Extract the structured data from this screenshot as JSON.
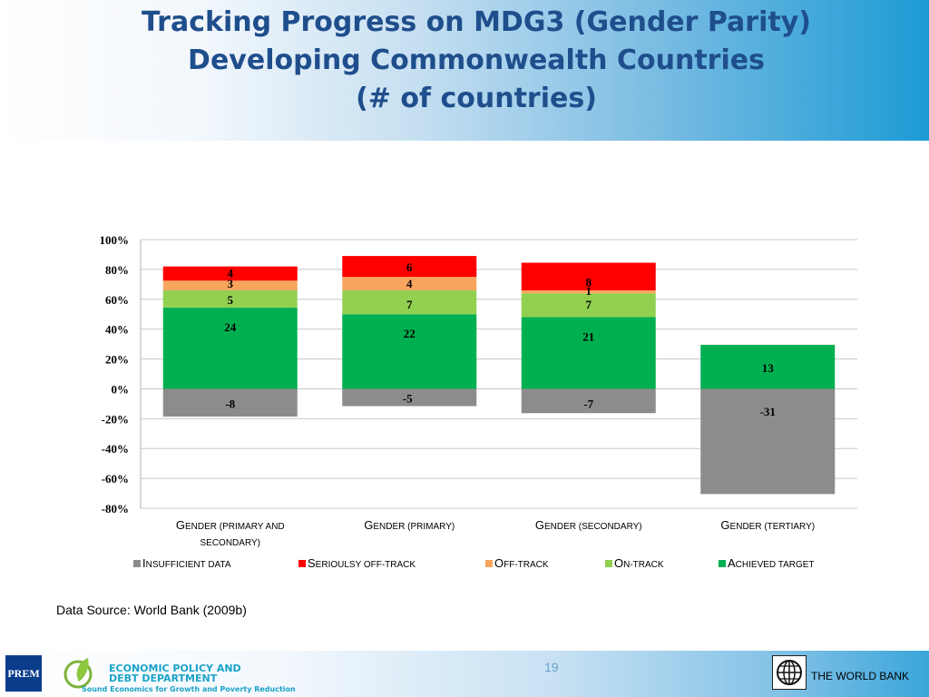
{
  "header": {
    "title_line1": "Tracking Progress on MDG3 (Gender Parity)",
    "title_line2": "Developing Commonwealth Countries",
    "title_line3": "(# of countries)"
  },
  "chart_data": {
    "type": "bar",
    "stacked": true,
    "categories": [
      "Gender (primary and secondary)",
      "Gender (primary)",
      "Gender (secondary)",
      "Gender (tertiary)"
    ],
    "category_display": [
      {
        "line1_a": "G",
        "line1_b": "ENDER (PRIMARY AND",
        "line2": "SECONDARY)"
      },
      {
        "line1_a": "G",
        "line1_b": "ENDER (PRIMARY)",
        "line2": ""
      },
      {
        "line1_a": "G",
        "line1_b": "ENDER (SECONDARY)",
        "line2": ""
      },
      {
        "line1_a": "G",
        "line1_b": "ENDER (TERTIARY)",
        "line2": ""
      }
    ],
    "series": [
      {
        "name": "Insufficient data",
        "color": "#8c8c8c",
        "values": [
          -8,
          -5,
          -7,
          -31
        ],
        "pct": [
          -18.6,
          -11.6,
          -16.3,
          -70.5
        ],
        "labels": [
          "-8",
          "-5",
          "-7",
          "-31"
        ]
      },
      {
        "name": "Achieved target",
        "color": "#00b050",
        "values": [
          24,
          22,
          21,
          13
        ],
        "pct": [
          54.5,
          50.0,
          48.0,
          29.5
        ],
        "labels": [
          "24",
          "22",
          "21",
          "13"
        ]
      },
      {
        "name": "On-track",
        "color": "#92d050",
        "values": [
          5,
          7,
          7,
          0
        ],
        "pct": [
          11.5,
          16.0,
          16.0,
          0
        ],
        "labels": [
          "5",
          "7",
          "7",
          ""
        ]
      },
      {
        "name": "Off-track",
        "color": "#f8a55e",
        "values": [
          3,
          4,
          1,
          0
        ],
        "pct": [
          6.5,
          9.0,
          2.0,
          0
        ],
        "labels": [
          "3",
          "4",
          "1",
          ""
        ]
      },
      {
        "name": "Serioulsy off-track",
        "color": "#ff0000",
        "values": [
          4,
          6,
          8,
          0
        ],
        "pct": [
          9.5,
          14.0,
          18.5,
          0
        ],
        "labels": [
          "4",
          "6",
          "8",
          ""
        ]
      }
    ],
    "ylim": [
      -80,
      100
    ],
    "yticks": [
      100,
      80,
      60,
      40,
      20,
      0,
      -20,
      -40,
      -60,
      -80
    ],
    "ytick_labels": [
      "100%",
      "80%",
      "60%",
      "40%",
      "20%",
      "0%",
      "-20%",
      "-40%",
      "-60%",
      "-80%"
    ],
    "grid": true,
    "legend_position": "bottom"
  },
  "legend": [
    {
      "a": "I",
      "b": "NSUFFICIENT DATA",
      "color": "#8c8c8c"
    },
    {
      "a": "S",
      "b": "ERIOULSY OFF-TRACK",
      "color": "#ff0000"
    },
    {
      "a": "O",
      "b": "FF-TRACK",
      "color": "#f8a55e"
    },
    {
      "a": "O",
      "b": "N-TRACK",
      "color": "#92d050"
    },
    {
      "a": "A",
      "b": "CHIEVED TARGET",
      "color": "#00b050"
    }
  ],
  "source": "Data Source: World Bank (2009b)",
  "footer": {
    "prem_logo": "PREM",
    "dept_line1": "ECONOMIC POLICY AND",
    "dept_line2": "DEBT DEPARTMENT",
    "tagline": "Sound Economics for Growth and Poverty Reduction",
    "page_number": "19",
    "org_name": "THE WORLD BANK"
  }
}
